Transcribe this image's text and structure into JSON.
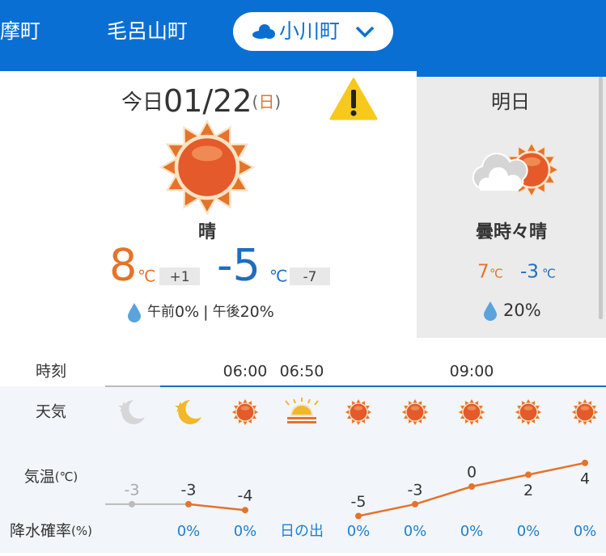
{
  "tabs": [
    "摩町",
    "毛呂山町",
    "小川町"
  ],
  "today": {
    "label": "今日",
    "date": "01/22",
    "weekday": "日",
    "weekday_brackets": [
      "(",
      ")"
    ],
    "condition": "晴",
    "high": "8",
    "high_diff": "+1",
    "low": "-5",
    "low_diff": "-7",
    "unit": "℃",
    "precip_am_label": "午前",
    "precip_am": "0%",
    "separator": "|",
    "precip_pm_label": "午後",
    "precip_pm": "20%"
  },
  "tomorrow": {
    "label": "明日",
    "condition": "曇時々晴",
    "high": "7",
    "low": "-3",
    "unit": "℃",
    "precip": "20%"
  },
  "hourly": {
    "row_labels": {
      "time": "時刻",
      "weather": "天気",
      "temp": "気温",
      "temp_unit": "(℃)",
      "precip": "降水確率",
      "precip_unit": "(%)"
    },
    "times": [
      null,
      null,
      "06:00",
      "06:50",
      null,
      null,
      "09:00",
      null,
      null
    ],
    "icons": [
      "moon-past",
      "moon",
      "sun",
      "sunrise",
      "sun",
      "sun",
      "sun",
      "sun",
      "sun"
    ],
    "temps": [
      -3,
      -3,
      -4,
      null,
      -5,
      -3,
      0,
      2,
      4
    ],
    "precip": [
      null,
      "0%",
      "0%",
      "日の出",
      "0%",
      "0%",
      "0%",
      "0%",
      "0%"
    ]
  }
}
